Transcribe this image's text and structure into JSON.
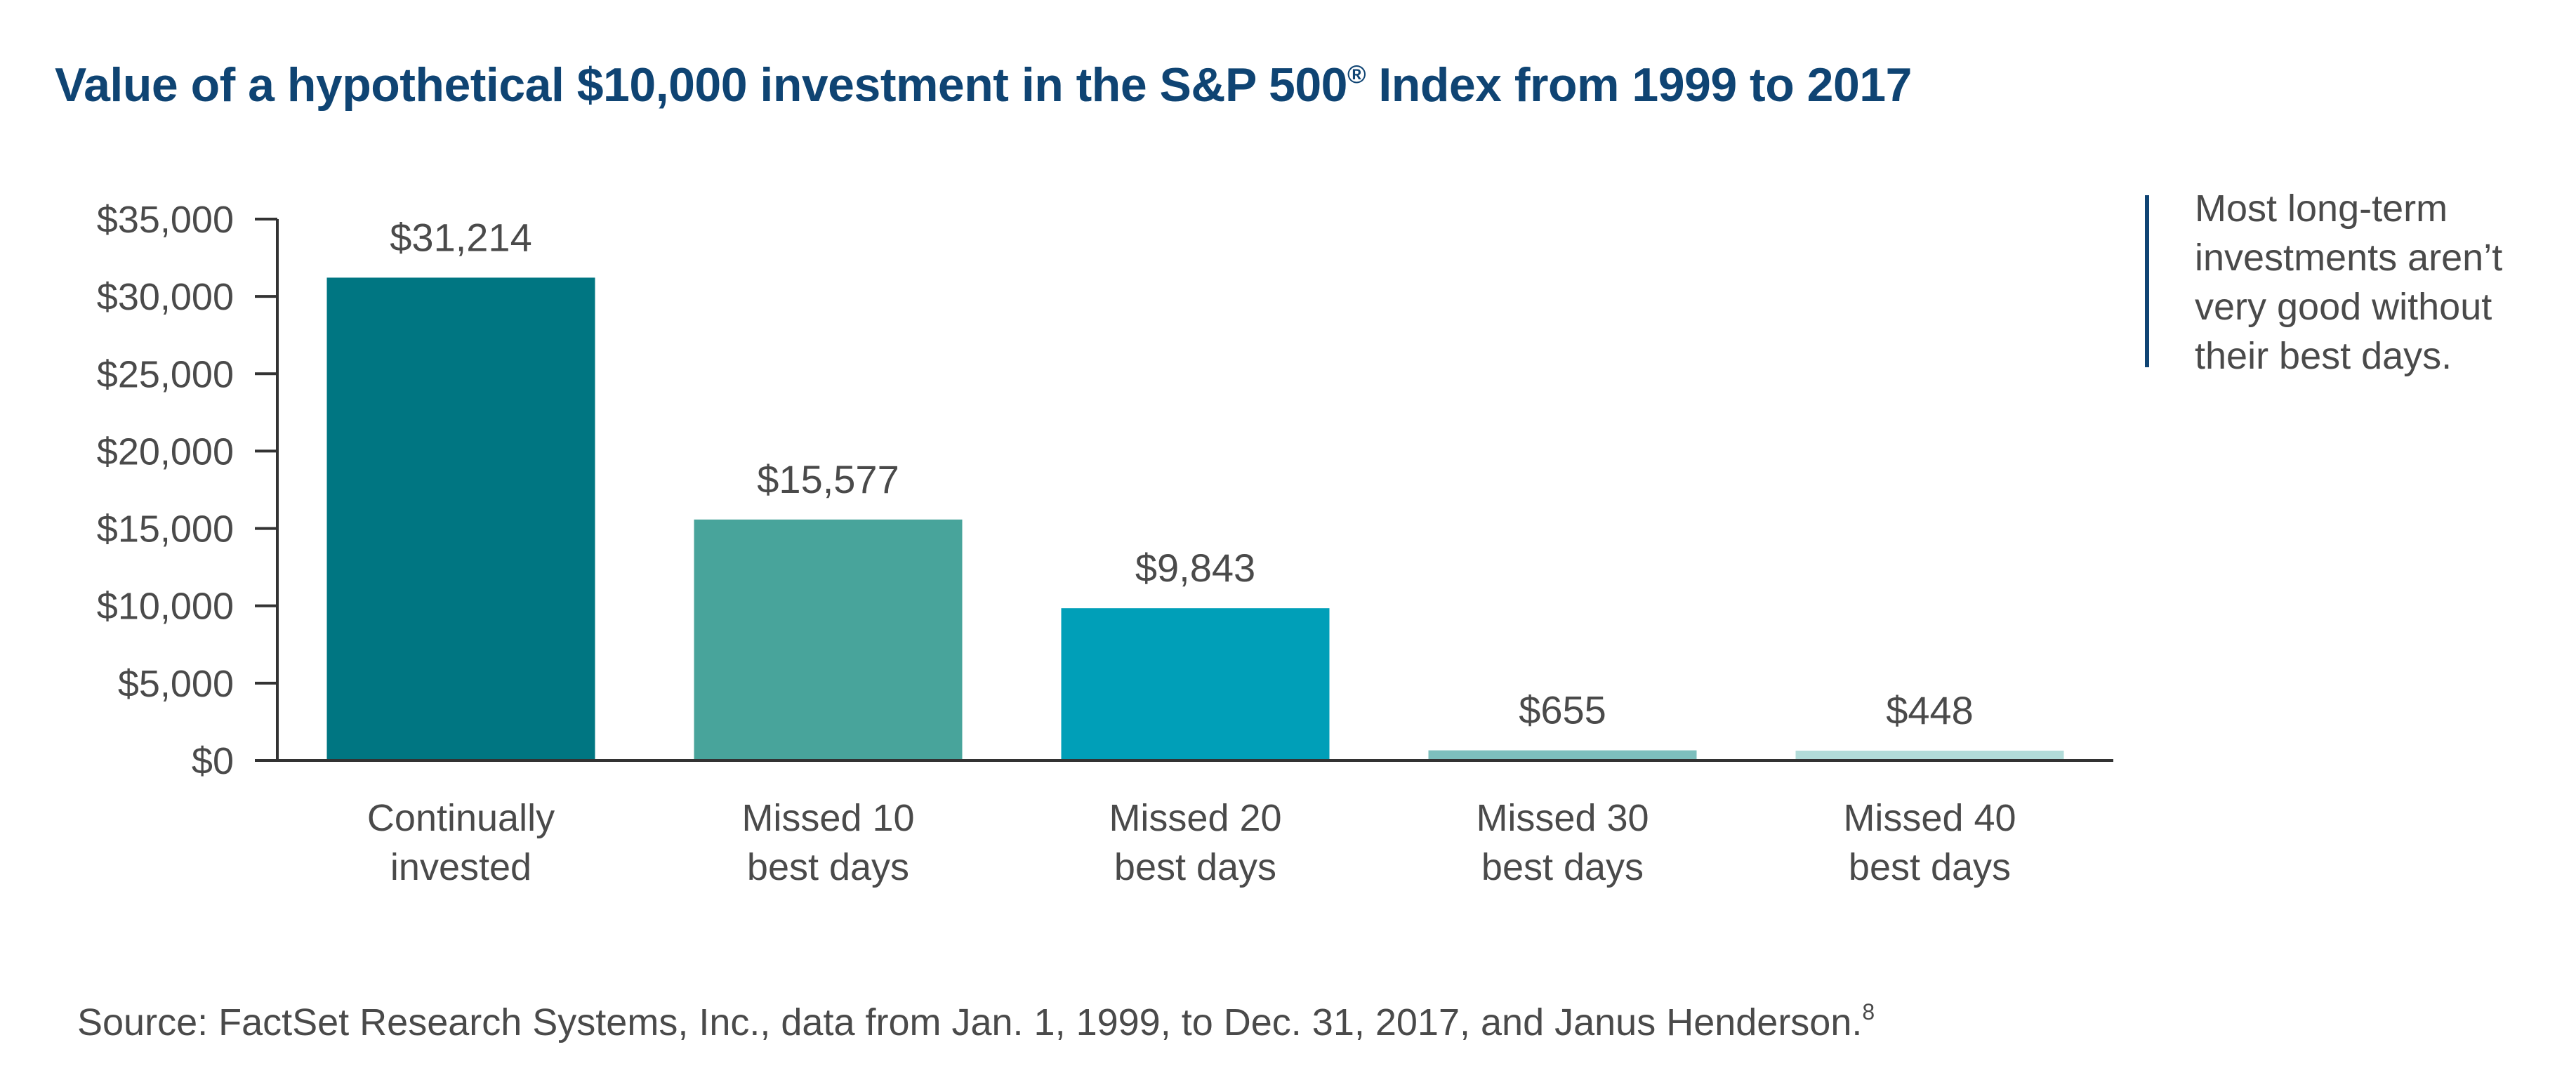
{
  "title_text": "Value of a hypothetical $10,000 investment in the S&P 500",
  "title_superscript": "®",
  "title_suffix": " Index from 1999 to 2017",
  "callout": "Most long-term investments aren’t very good without their best days.",
  "source_text": "Source: FactSet Research Systems, Inc., data from Jan. 1, 1999, to Dec. 31, 2017, and Janus Henderson.",
  "source_footnote": "8",
  "chart_data": {
    "type": "bar",
    "title": "Value of a hypothetical $10,000 investment in the S&P 500® Index from 1999 to 2017",
    "categories": [
      [
        "Continually",
        "invested"
      ],
      [
        "Missed 10",
        "best days"
      ],
      [
        "Missed 20",
        "best days"
      ],
      [
        "Missed 30",
        "best days"
      ],
      [
        "Missed 40",
        "best days"
      ]
    ],
    "values": [
      31214,
      15577,
      9843,
      655,
      448
    ],
    "data_labels": [
      "$31,214",
      "$15,577",
      "$9,843",
      "$655",
      "$448"
    ],
    "bar_colors": [
      "#007682",
      "#48a49b",
      "#009fb8",
      "#7dbfbd",
      "#b2dcd9"
    ],
    "ylim": [
      0,
      35000
    ],
    "yticks": [
      0,
      5000,
      10000,
      15000,
      20000,
      25000,
      30000,
      35000
    ],
    "ytick_labels": [
      "$0",
      "$5,000",
      "$10,000",
      "$15,000",
      "$20,000",
      "$25,000",
      "$30,000",
      "$35,000"
    ],
    "xlabel": "",
    "ylabel": "",
    "grid": false,
    "legend": "none"
  },
  "colors": {
    "title": "#0f4473",
    "text": "#4a4a4a",
    "axis": "#333333"
  }
}
